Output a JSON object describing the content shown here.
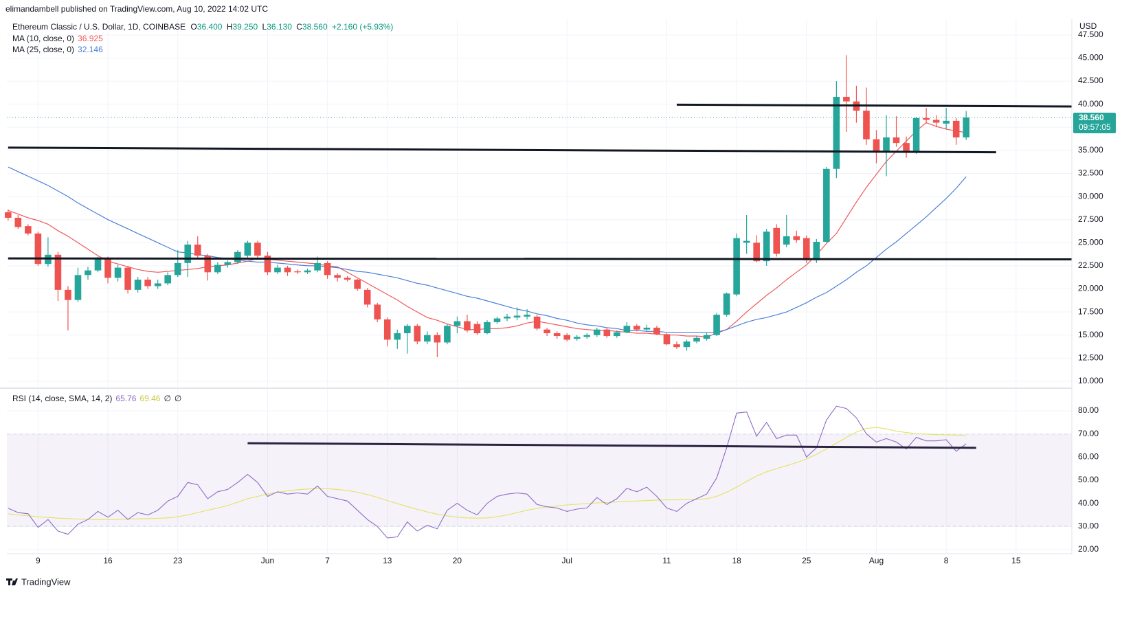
{
  "header": "elimandambell published on TradingView.com, Aug 10, 2022 14:02 UTC",
  "footer": "TradingView",
  "chart_data": {
    "type": "candlestick",
    "title": "Ethereum Classic / U.S. Dollar, 1D, COINBASE",
    "ohlc": [
      {
        "key": "O",
        "value": "36.400"
      },
      {
        "key": "H",
        "value": "39.250"
      },
      {
        "key": "L",
        "value": "36.130"
      },
      {
        "key": "C",
        "value": "38.560"
      }
    ],
    "change": "+2.160 (+5.93%)",
    "y_unit": "USD",
    "last_price": 38.56,
    "last_price_label": "38.560",
    "countdown": "09:57:05",
    "up_color": "#26a69a",
    "down_color": "#ef5350",
    "x": [
      "2022-05-06",
      "2022-05-07",
      "2022-05-08",
      "2022-05-09",
      "2022-05-10",
      "2022-05-11",
      "2022-05-12",
      "2022-05-13",
      "2022-05-14",
      "2022-05-15",
      "2022-05-16",
      "2022-05-17",
      "2022-05-18",
      "2022-05-19",
      "2022-05-20",
      "2022-05-21",
      "2022-05-22",
      "2022-05-23",
      "2022-05-24",
      "2022-05-25",
      "2022-05-26",
      "2022-05-27",
      "2022-05-28",
      "2022-05-29",
      "2022-05-30",
      "2022-05-31",
      "2022-06-01",
      "2022-06-02",
      "2022-06-03",
      "2022-06-04",
      "2022-06-05",
      "2022-06-06",
      "2022-06-07",
      "2022-06-08",
      "2022-06-09",
      "2022-06-10",
      "2022-06-11",
      "2022-06-12",
      "2022-06-13",
      "2022-06-14",
      "2022-06-15",
      "2022-06-16",
      "2022-06-17",
      "2022-06-18",
      "2022-06-19",
      "2022-06-20",
      "2022-06-21",
      "2022-06-22",
      "2022-06-23",
      "2022-06-24",
      "2022-06-25",
      "2022-06-26",
      "2022-06-27",
      "2022-06-28",
      "2022-06-29",
      "2022-06-30",
      "2022-07-01",
      "2022-07-02",
      "2022-07-03",
      "2022-07-04",
      "2022-07-05",
      "2022-07-06",
      "2022-07-07",
      "2022-07-08",
      "2022-07-09",
      "2022-07-10",
      "2022-07-11",
      "2022-07-12",
      "2022-07-13",
      "2022-07-14",
      "2022-07-15",
      "2022-07-16",
      "2022-07-17",
      "2022-07-18",
      "2022-07-19",
      "2022-07-20",
      "2022-07-21",
      "2022-07-22",
      "2022-07-23",
      "2022-07-24",
      "2022-07-25",
      "2022-07-26",
      "2022-07-27",
      "2022-07-28",
      "2022-07-29",
      "2022-07-30",
      "2022-07-31",
      "2022-08-01",
      "2022-08-02",
      "2022-08-03",
      "2022-08-04",
      "2022-08-05",
      "2022-08-06",
      "2022-08-07",
      "2022-08-08",
      "2022-08-09",
      "2022-08-10"
    ],
    "open": [
      28.3,
      27.7,
      26.8,
      26.0,
      22.7,
      23.7,
      19.9,
      18.8,
      21.5,
      22.0,
      23.2,
      21.2,
      22.3,
      19.9,
      21.0,
      20.3,
      20.6,
      21.5,
      22.8,
      24.8,
      23.6,
      21.8,
      22.6,
      22.9,
      23.6,
      25.0,
      23.6,
      21.8,
      22.3,
      21.9,
      21.8,
      22.0,
      22.8,
      21.5,
      21.2,
      21.0,
      19.9,
      18.3,
      16.7,
      14.5,
      15.2,
      16.0,
      14.3,
      15.0,
      14.2,
      16.0,
      16.5,
      16.2,
      15.2,
      16.4,
      16.8,
      16.9,
      17.0,
      17.0,
      15.6,
      15.2,
      15.0,
      14.6,
      14.8,
      15.0,
      15.6,
      14.9,
      15.3,
      16.0,
      15.6,
      15.8,
      15.1,
      14.0,
      13.7,
      14.3,
      14.6,
      15.0,
      17.2,
      19.4,
      25.0,
      25.0,
      23.0,
      26.6,
      24.8,
      25.7,
      25.5,
      23.1,
      25.1,
      33.0,
      40.8,
      40.3,
      39.3,
      36.2,
      34.8,
      36.4,
      35.8,
      34.9,
      38.5,
      38.3,
      37.9,
      38.2,
      36.4
    ],
    "high": [
      28.6,
      28.0,
      27.0,
      26.2,
      25.6,
      24.0,
      20.3,
      22.3,
      22.4,
      23.5,
      23.5,
      22.6,
      22.5,
      21.3,
      21.3,
      21.0,
      21.8,
      24.2,
      25.2,
      25.7,
      23.8,
      22.9,
      23.1,
      24.2,
      25.2,
      25.2,
      24.0,
      22.6,
      22.5,
      22.1,
      22.2,
      23.5,
      23.0,
      21.7,
      21.4,
      21.1,
      20.1,
      18.5,
      16.9,
      15.6,
      16.2,
      16.2,
      15.4,
      15.3,
      16.2,
      17.0,
      17.2,
      16.5,
      16.6,
      17.0,
      17.3,
      18.0,
      17.8,
      17.2,
      15.8,
      15.4,
      15.2,
      15.0,
      15.2,
      15.8,
      15.8,
      15.5,
      16.4,
      16.2,
      16.1,
      16.0,
      15.2,
      14.3,
      14.5,
      14.9,
      15.2,
      17.4,
      19.6,
      26.0,
      28.0,
      25.8,
      26.5,
      27.0,
      28.0,
      26.3,
      25.8,
      25.4,
      33.2,
      42.5,
      45.3,
      42.0,
      41.8,
      37.2,
      38.8,
      38.7,
      36.5,
      38.6,
      39.6,
      38.8,
      39.6,
      38.5,
      39.25
    ],
    "low": [
      27.4,
      26.5,
      25.8,
      22.5,
      22.4,
      18.7,
      15.5,
      18.6,
      21.0,
      21.8,
      20.6,
      20.8,
      19.5,
      19.6,
      20.0,
      20.0,
      20.4,
      21.3,
      21.3,
      23.3,
      20.9,
      21.6,
      22.3,
      22.7,
      23.4,
      23.3,
      21.5,
      21.6,
      21.4,
      21.6,
      21.6,
      21.8,
      21.1,
      20.8,
      20.8,
      19.8,
      18.0,
      16.4,
      13.8,
      13.5,
      13.0,
      14.0,
      14.0,
      12.6,
      14.0,
      15.2,
      15.3,
      15.0,
      15.1,
      16.2,
      16.5,
      16.6,
      16.7,
      15.5,
      14.9,
      14.6,
      14.3,
      14.4,
      14.6,
      14.8,
      14.7,
      14.7,
      15.2,
      15.4,
      15.4,
      15.0,
      13.9,
      13.5,
      13.3,
      14.1,
      14.4,
      14.9,
      17.0,
      19.2,
      23.8,
      22.9,
      22.5,
      23.5,
      24.5,
      25.0,
      22.8,
      22.8,
      25.0,
      32.0,
      37.0,
      38.0,
      35.6,
      33.6,
      32.2,
      35.4,
      34.2,
      34.6,
      37.9,
      37.5,
      37.3,
      35.6,
      36.13
    ],
    "close": [
      27.7,
      26.7,
      26.0,
      22.7,
      23.7,
      19.9,
      18.8,
      21.5,
      22.0,
      23.2,
      21.2,
      22.3,
      19.9,
      21.0,
      20.3,
      20.6,
      21.5,
      22.8,
      24.8,
      23.6,
      21.8,
      22.6,
      22.9,
      24.0,
      25.0,
      23.6,
      21.8,
      22.3,
      21.8,
      21.8,
      22.0,
      22.8,
      21.5,
      21.2,
      21.0,
      20.0,
      18.3,
      16.7,
      14.5,
      15.2,
      16.0,
      14.3,
      15.0,
      14.2,
      16.0,
      16.5,
      15.5,
      15.2,
      16.4,
      16.8,
      17.0,
      17.1,
      17.2,
      15.7,
      15.2,
      14.9,
      14.5,
      14.8,
      15.0,
      15.6,
      14.9,
      15.3,
      16.0,
      15.6,
      15.8,
      15.1,
      14.0,
      13.7,
      14.3,
      14.7,
      15.0,
      17.2,
      19.5,
      25.5,
      25.2,
      23.0,
      26.2,
      23.8,
      25.7,
      25.3,
      23.1,
      25.1,
      33.0,
      40.8,
      40.3,
      39.3,
      36.2,
      34.8,
      36.4,
      35.8,
      34.9,
      38.5,
      38.3,
      38.0,
      38.2,
      36.4,
      38.56
    ],
    "series": [
      {
        "name": "MA (10, close, 0)",
        "last_label": "36.925",
        "color": "#f0575a",
        "values": [
          28.5,
          28.1,
          27.7,
          27.4,
          27.0,
          26.3,
          25.7,
          25.0,
          24.3,
          23.6,
          23.0,
          22.7,
          22.4,
          22.1,
          21.9,
          21.8,
          21.9,
          22.0,
          22.1,
          22.2,
          22.4,
          22.5,
          22.6,
          22.8,
          23.0,
          23.3,
          23.2,
          23.1,
          23.0,
          22.9,
          22.8,
          22.7,
          22.5,
          22.4,
          21.8,
          21.2,
          20.6,
          20.0,
          19.4,
          18.8,
          18.1,
          17.5,
          16.9,
          16.6,
          16.2,
          15.9,
          15.6,
          15.6,
          15.7,
          15.7,
          15.8,
          16.0,
          16.3,
          16.5,
          16.3,
          16.1,
          15.9,
          15.7,
          15.6,
          15.5,
          15.5,
          15.4,
          15.3,
          15.2,
          15.2,
          15.1,
          15.0,
          15.0,
          14.9,
          14.9,
          14.8,
          15.2,
          15.6,
          16.5,
          17.5,
          18.4,
          19.3,
          20.1,
          21.0,
          21.8,
          22.6,
          23.7,
          24.9,
          26.0,
          27.7,
          29.4,
          31.0,
          32.4,
          33.8,
          34.9,
          36.0,
          37.1,
          38.0,
          37.6,
          37.3,
          37.1,
          36.925
        ]
      },
      {
        "name": "MA (25, close, 0)",
        "last_label": "32.146",
        "color": "#4a7fd8",
        "values": [
          33.2,
          32.7,
          32.2,
          31.7,
          31.2,
          30.6,
          30.0,
          29.3,
          28.7,
          28.1,
          27.5,
          27.0,
          26.5,
          26.0,
          25.5,
          25.0,
          24.5,
          24.0,
          23.9,
          23.7,
          23.6,
          23.4,
          23.3,
          23.1,
          23.0,
          22.9,
          22.9,
          22.8,
          22.7,
          22.6,
          22.5,
          22.5,
          22.4,
          22.3,
          22.1,
          21.9,
          21.8,
          21.6,
          21.4,
          21.2,
          20.9,
          20.6,
          20.4,
          20.1,
          19.8,
          19.5,
          19.2,
          19.0,
          18.7,
          18.4,
          18.1,
          17.8,
          17.6,
          17.3,
          17.1,
          16.8,
          16.6,
          16.3,
          16.1,
          16.0,
          15.8,
          15.7,
          15.5,
          15.5,
          15.4,
          15.4,
          15.3,
          15.3,
          15.3,
          15.3,
          15.3,
          15.3,
          15.6,
          16.0,
          16.4,
          16.7,
          16.9,
          17.2,
          17.5,
          18.0,
          18.5,
          19.1,
          19.6,
          20.3,
          21.0,
          21.8,
          22.5,
          23.4,
          24.3,
          25.1,
          26.0,
          26.9,
          27.8,
          28.8,
          29.8,
          30.9,
          32.146
        ]
      }
    ],
    "lines": [
      {
        "x": [
          "2022-07-12",
          "2022-08-21"
        ],
        "y": [
          39.95,
          39.75
        ],
        "color": "#131722"
      },
      {
        "x": [
          "2022-05-06",
          "2022-08-13"
        ],
        "y": [
          35.3,
          34.8
        ],
        "color": "#131722"
      },
      {
        "x": [
          "2022-05-06",
          "2022-08-21"
        ],
        "y": [
          23.3,
          23.2
        ],
        "color": "#131722"
      }
    ],
    "ylim": [
      9.4,
      49.2
    ],
    "yticks": [
      {
        "value": 10,
        "label": "10.000"
      },
      {
        "value": 12.5,
        "label": "12.500"
      },
      {
        "value": 15,
        "label": "15.000"
      },
      {
        "value": 17.5,
        "label": "17.500"
      },
      {
        "value": 20,
        "label": "20.000"
      },
      {
        "value": 22.5,
        "label": "22.500"
      },
      {
        "value": 25,
        "label": "25.000"
      },
      {
        "value": 27.5,
        "label": "27.500"
      },
      {
        "value": 30,
        "label": "30.000"
      },
      {
        "value": 32.5,
        "label": "32.500"
      },
      {
        "value": 35,
        "label": "35.000"
      },
      {
        "value": 37.5,
        "label": "37.500"
      },
      {
        "value": 40,
        "label": "40.000"
      },
      {
        "value": 42.5,
        "label": "42.500"
      },
      {
        "value": 45,
        "label": "45.000"
      },
      {
        "value": 47.5,
        "label": "47.500"
      }
    ],
    "xticks": [
      {
        "value": "2022-05-09",
        "label": "9"
      },
      {
        "value": "2022-05-16",
        "label": "16"
      },
      {
        "value": "2022-05-23",
        "label": "23"
      },
      {
        "value": "2022-06-01",
        "label": "Jun"
      },
      {
        "value": "2022-06-07",
        "label": "7"
      },
      {
        "value": "2022-06-13",
        "label": "13"
      },
      {
        "value": "2022-06-20",
        "label": "20"
      },
      {
        "value": "2022-07-01",
        "label": "Jul"
      },
      {
        "value": "2022-07-11",
        "label": "11"
      },
      {
        "value": "2022-07-18",
        "label": "18"
      },
      {
        "value": "2022-07-25",
        "label": "25"
      },
      {
        "value": "2022-08-01",
        "label": "Aug"
      },
      {
        "value": "2022-08-08",
        "label": "8"
      },
      {
        "value": "2022-08-15",
        "label": "15"
      }
    ],
    "grid": true,
    "rsi": {
      "type": "line",
      "title": "RSI (14, close, SMA, 14, 2)",
      "na_labels": [
        "∅",
        "∅"
      ],
      "series": [
        {
          "name": "RSI",
          "last_label": "65.76",
          "color": "#8e6bc4",
          "values": [
            37.9,
            36.0,
            35.5,
            29.6,
            33.0,
            28.0,
            26.6,
            31.0,
            33.0,
            36.5,
            34.0,
            37.0,
            33.0,
            36.0,
            35.0,
            37.0,
            41.0,
            43.0,
            49.0,
            48.0,
            42.0,
            45.0,
            46.0,
            49.0,
            52.5,
            49.0,
            43.0,
            45.0,
            44.0,
            44.5,
            44.0,
            47.5,
            43.0,
            42.0,
            41.0,
            37.0,
            33.0,
            30.0,
            25.0,
            25.5,
            32.0,
            28.0,
            30.5,
            29.0,
            37.0,
            40.0,
            37.0,
            35.0,
            40.0,
            43.0,
            44.0,
            44.5,
            44.0,
            39.5,
            38.5,
            38.0,
            36.5,
            37.5,
            38.0,
            42.5,
            39.5,
            42.0,
            46.5,
            45.0,
            47.0,
            43.0,
            38.0,
            36.5,
            40.0,
            42.0,
            44.0,
            51.0,
            64.0,
            79.0,
            79.5,
            69.0,
            75.0,
            68.0,
            69.5,
            69.5,
            60.0,
            64.0,
            76.0,
            82.0,
            81.0,
            77.0,
            70.0,
            66.5,
            68.0,
            66.5,
            63.5,
            68.5,
            67.0,
            67.0,
            67.5,
            62.5,
            65.76
          ]
        },
        {
          "name": "SMA",
          "last_label": "69.46",
          "color": "#e3e35e",
          "values": [
            35.5,
            35.0,
            34.6,
            34.2,
            33.9,
            33.6,
            33.4,
            33.2,
            33.1,
            33.0,
            33.0,
            33.1,
            33.2,
            33.3,
            33.4,
            33.5,
            33.7,
            34.2,
            35.0,
            36.0,
            37.0,
            38.0,
            39.0,
            40.5,
            42.0,
            43.0,
            44.0,
            44.8,
            45.4,
            45.9,
            46.2,
            46.4,
            46.3,
            46.0,
            45.5,
            44.8,
            43.8,
            42.6,
            41.2,
            39.9,
            38.6,
            37.4,
            36.3,
            35.3,
            34.6,
            34.0,
            33.7,
            33.6,
            33.7,
            34.2,
            35.0,
            36.0,
            37.0,
            37.8,
            38.4,
            38.9,
            39.3,
            39.6,
            39.9,
            40.2,
            40.4,
            40.6,
            40.8,
            41.0,
            41.2,
            41.4,
            41.5,
            41.5,
            41.6,
            41.6,
            42.0,
            43.0,
            44.8,
            47.0,
            49.5,
            51.8,
            53.6,
            55.0,
            56.3,
            57.6,
            59.2,
            61.2,
            63.5,
            66.0,
            68.5,
            70.8,
            72.4,
            72.8,
            72.2,
            71.2,
            70.6,
            70.2,
            69.9,
            69.7,
            69.6,
            69.5,
            69.46
          ]
        }
      ],
      "band": [
        30,
        70
      ],
      "levels": [
        70,
        50,
        30
      ],
      "band_color": "#7e57c2",
      "lines": [
        {
          "x": [
            "2022-05-30",
            "2022-08-11"
          ],
          "y": [
            66.0,
            64.0
          ],
          "color": "#2a2440"
        }
      ],
      "ylim": [
        18.5,
        89.5
      ],
      "yticks": [
        {
          "value": 20,
          "label": "20.00"
        },
        {
          "value": 30,
          "label": "30.00"
        },
        {
          "value": 40,
          "label": "40.00"
        },
        {
          "value": 50,
          "label": "50.00"
        },
        {
          "value": 60,
          "label": "60.00"
        },
        {
          "value": 70,
          "label": "70.00"
        },
        {
          "value": 80,
          "label": "80.00"
        }
      ],
      "grid": true
    }
  }
}
